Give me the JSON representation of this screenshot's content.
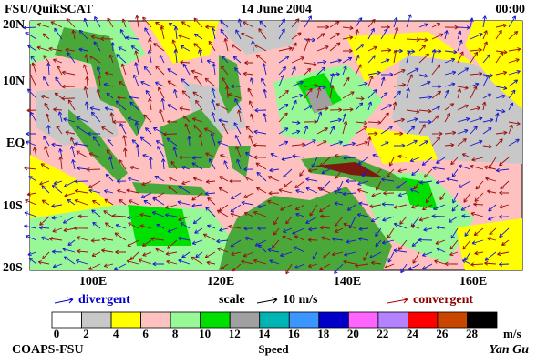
{
  "header": {
    "left": "FSU/QuikSCAT",
    "center": "14 June 2004",
    "right": "00:00"
  },
  "map": {
    "lat_labels": [
      "20N",
      "10N",
      "EQ",
      "10S",
      "20S"
    ],
    "lon_labels": [
      "100E",
      "120E",
      "140E",
      "160E"
    ]
  },
  "legend": {
    "divergent": "divergent",
    "scale": "scale",
    "scale_value": "10 m/s",
    "convergent": "convergent"
  },
  "colorbar": {
    "ticks": [
      0,
      2,
      4,
      6,
      8,
      10,
      12,
      14,
      16,
      18,
      20,
      22,
      24,
      26,
      28
    ],
    "colors": [
      "#ffffff",
      "#c8c8c8",
      "#ffff00",
      "#ffc0c0",
      "#98f898",
      "#00e000",
      "#a0a0a0",
      "#00b4b4",
      "#3c96ff",
      "#0000c8",
      "#ff64ff",
      "#b482ff",
      "#ff0000",
      "#c84600",
      "#000000"
    ],
    "unit": "m/s",
    "title": "Speed"
  },
  "footer": {
    "left": "COAPS-FSU",
    "right": "Yan Gu"
  }
}
